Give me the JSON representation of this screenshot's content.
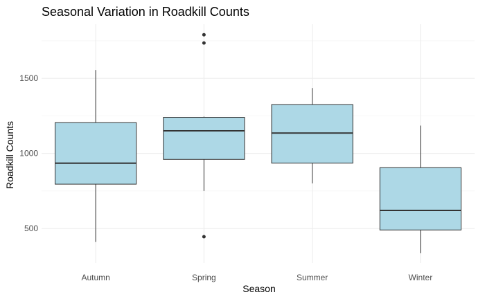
{
  "chart_data": {
    "type": "boxplot",
    "title": "Seasonal Variation in Roadkill Counts",
    "xlabel": "Season",
    "ylabel": "Roadkill Counts",
    "categories": [
      "Autumn",
      "Spring",
      "Summer",
      "Winter"
    ],
    "boxes": [
      {
        "category": "Autumn",
        "min": 410,
        "q1": 795,
        "median": 935,
        "q3": 1205,
        "max": 1555,
        "outliers": []
      },
      {
        "category": "Spring",
        "min": 750,
        "q1": 960,
        "median": 1150,
        "q3": 1240,
        "max": 1245,
        "outliers": [
          445,
          1735,
          1790
        ]
      },
      {
        "category": "Summer",
        "min": 800,
        "q1": 935,
        "median": 1135,
        "q3": 1325,
        "max": 1435,
        "outliers": []
      },
      {
        "category": "Winter",
        "min": 335,
        "q1": 490,
        "median": 620,
        "q3": 905,
        "max": 1185,
        "outliers": []
      }
    ],
    "y_ticks": [
      500,
      1000,
      1500
    ],
    "ylim": [
      270,
      1860
    ],
    "grid": true,
    "box_fill": "#add8e6",
    "box_stroke": "#333333"
  }
}
